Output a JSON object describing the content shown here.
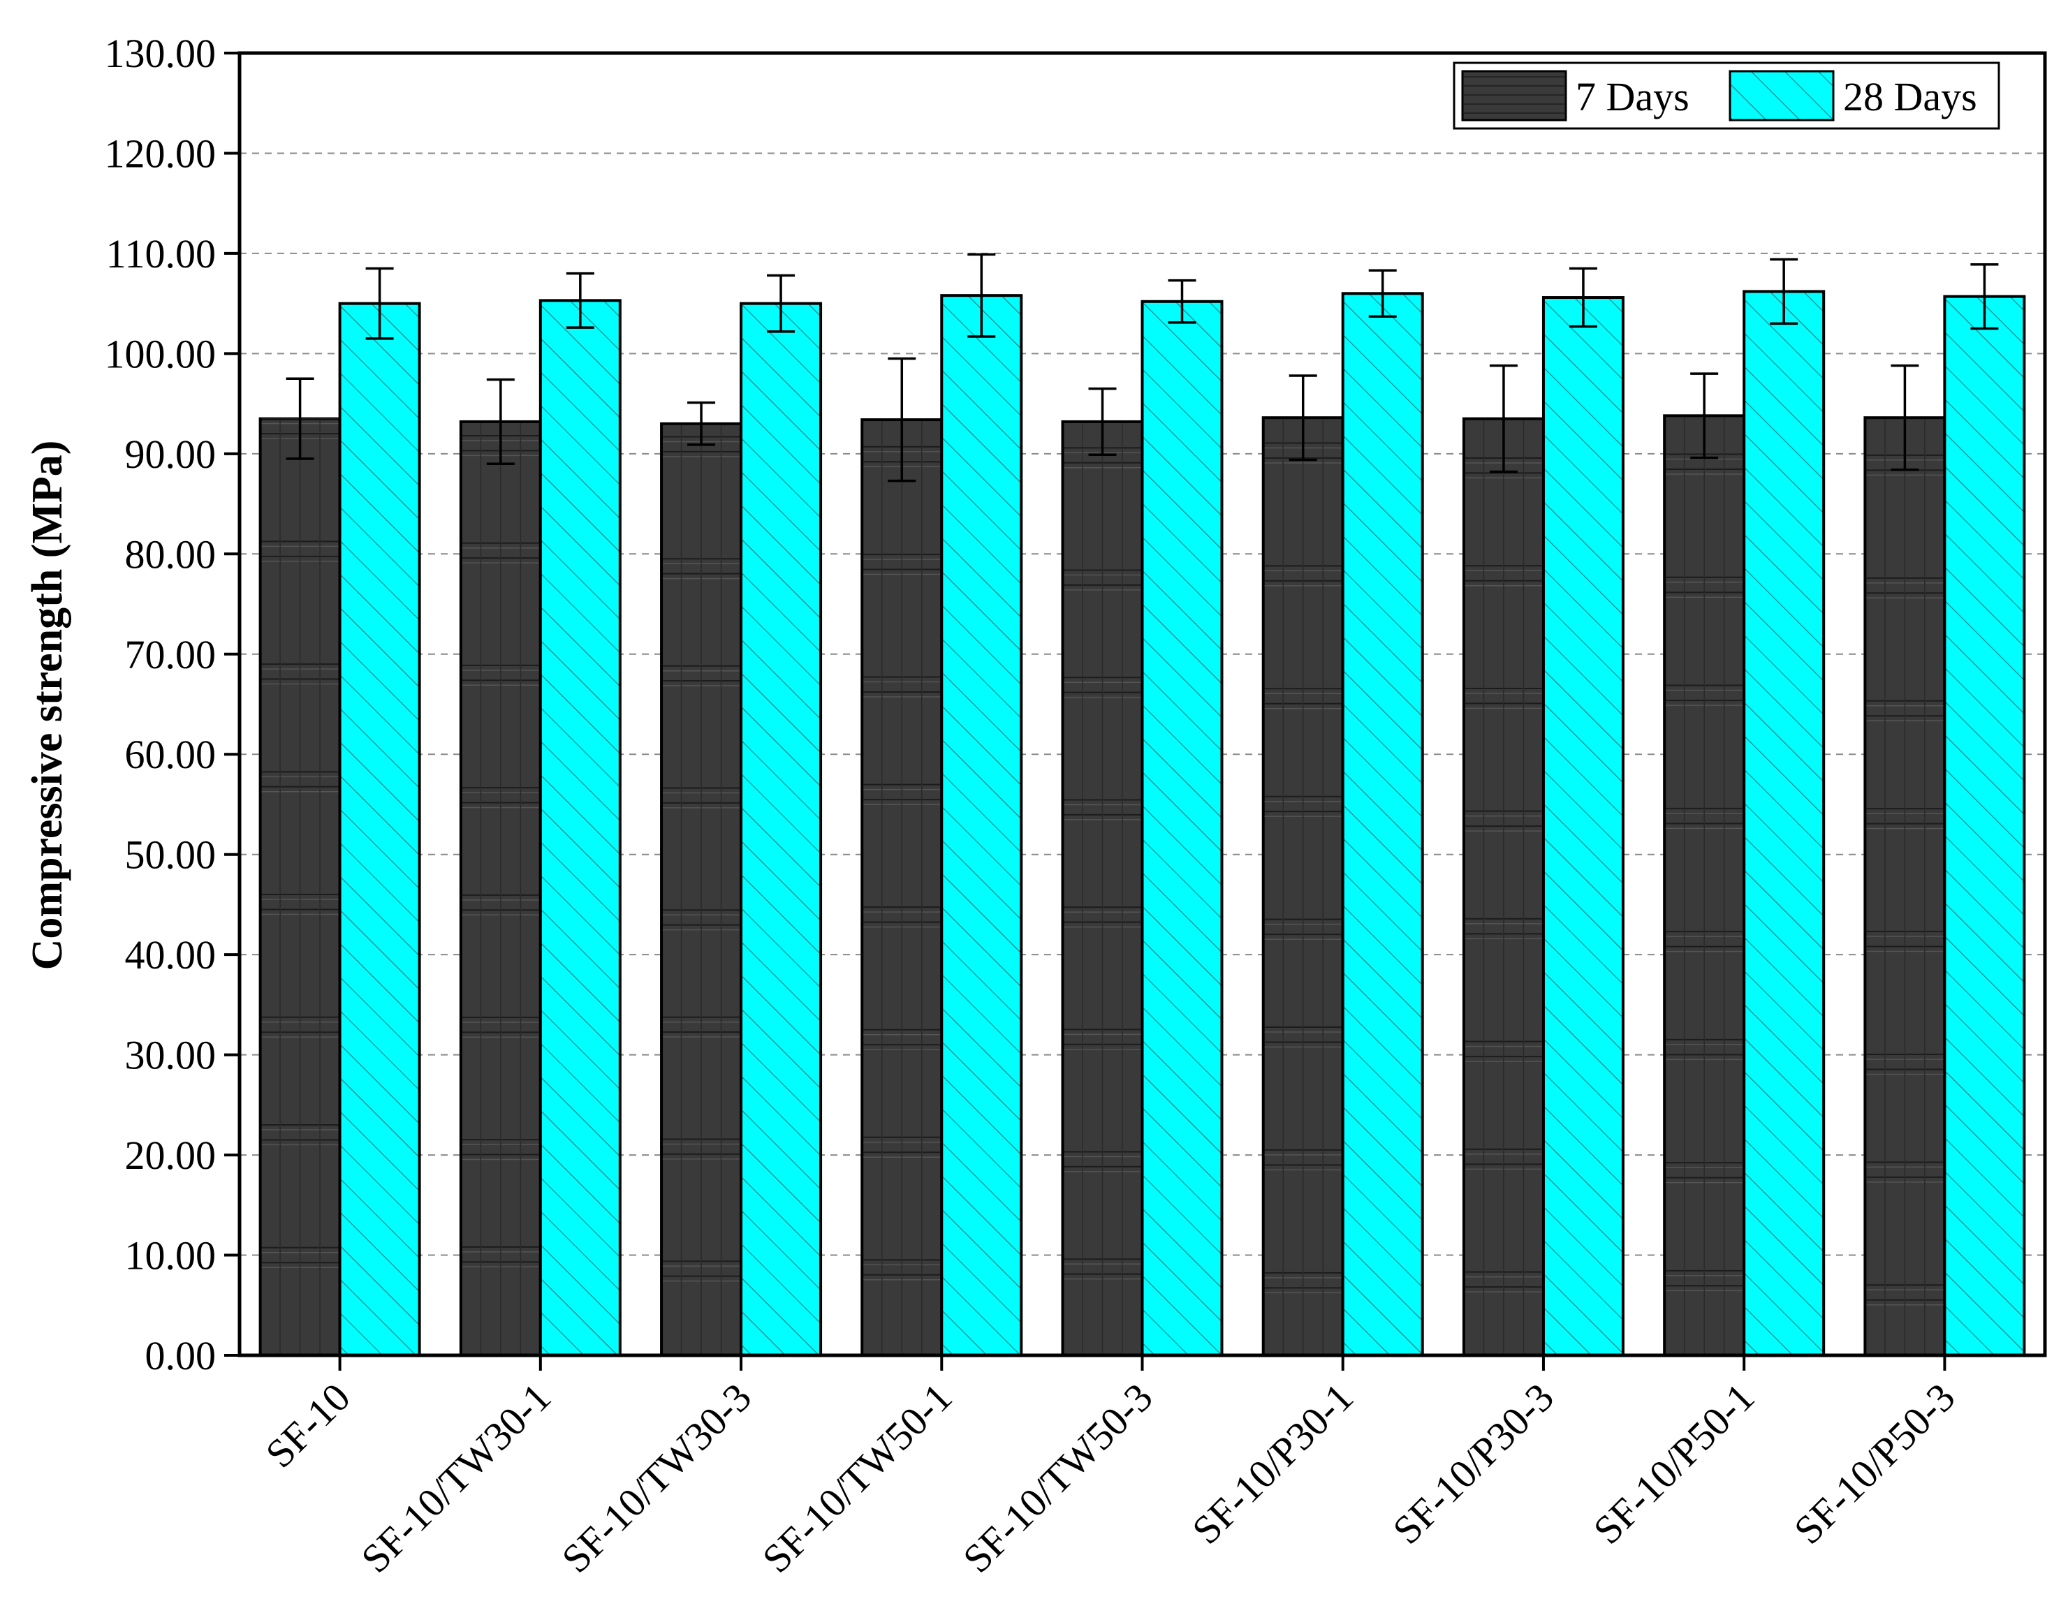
{
  "chart_data": {
    "type": "bar",
    "ylabel": "Compressive strength (MPa)",
    "xlabel": "",
    "ylim": [
      0,
      130
    ],
    "y_ticks": [
      "0.00",
      "10.00",
      "20.00",
      "30.00",
      "40.00",
      "50.00",
      "60.00",
      "70.00",
      "80.00",
      "90.00",
      "100.00",
      "110.00",
      "120.00",
      "130.00"
    ],
    "grid": "horizontal dashed",
    "legend_position": "top-right",
    "categories": [
      "SF-10",
      "SF-10/TW30-1",
      "SF-10/TW30-3",
      "SF-10/TW50-1",
      "SF-10/TW50-3",
      "SF-10/P30-1",
      "SF-10/P30-3",
      "SF-10/P50-1",
      "SF-10/P50-3"
    ],
    "series": [
      {
        "name": "7 Days",
        "color": "#3a3a3a",
        "pattern": "horizontal-vertical-lines",
        "values": [
          93.5,
          93.2,
          93.0,
          93.4,
          93.2,
          93.6,
          93.5,
          93.8,
          93.6
        ],
        "error": [
          4.0,
          4.2,
          2.1,
          6.1,
          3.3,
          4.2,
          5.3,
          4.2,
          5.2
        ]
      },
      {
        "name": "28 Days",
        "color": "#00ffff",
        "pattern": "diagonal-hatch",
        "values": [
          105.0,
          105.3,
          105.0,
          105.8,
          105.2,
          106.0,
          105.6,
          106.2,
          105.7
        ],
        "error": [
          3.5,
          2.7,
          2.8,
          4.1,
          2.1,
          2.3,
          2.9,
          3.2,
          3.2
        ]
      }
    ]
  }
}
